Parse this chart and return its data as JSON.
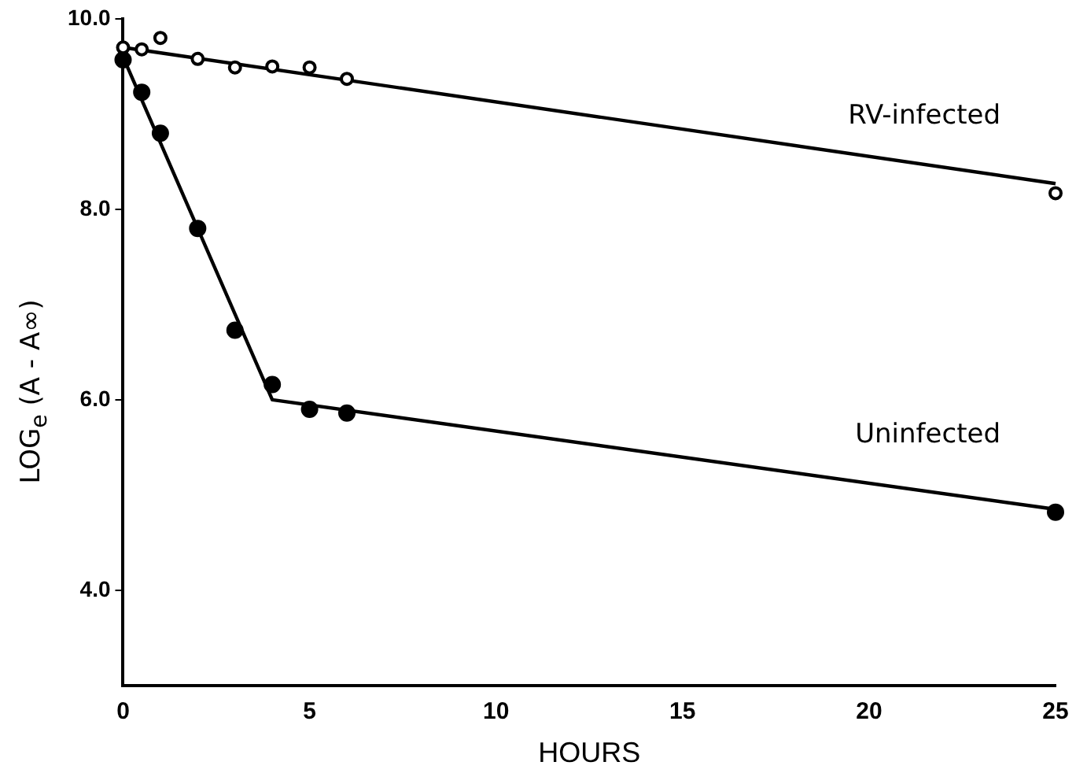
{
  "chart_data": {
    "type": "scatter",
    "xlabel": "HOURS",
    "ylabel": "LOG$_{e}$ (A - A∞)",
    "xlim": [
      0,
      25
    ],
    "xticks": [
      0,
      5,
      10,
      15,
      20,
      25
    ],
    "ylim": [
      3,
      10
    ],
    "yticks": [
      {
        "value": 4,
        "label": "4.0"
      },
      {
        "value": 6,
        "label": "6.0"
      },
      {
        "value": 8,
        "label": "8.0"
      },
      {
        "value": 10,
        "label": "10.0"
      }
    ],
    "grid": false,
    "legend": false,
    "marker": "circle",
    "series": [
      {
        "name": "RV-infected",
        "color": "#000000",
        "x": [
          0,
          0.5,
          1,
          2,
          3,
          4,
          5,
          6,
          25
        ],
        "values": [
          9.7,
          9.68,
          9.8,
          9.58,
          9.49,
          9.5,
          9.49,
          9.37,
          8.17
        ]
      },
      {
        "type": "line",
        "color": "#000000",
        "marker": "none",
        "x": [
          0,
          25
        ],
        "values": [
          9.7,
          8.27
        ]
      },
      {
        "name": "Uninfected",
        "color": "#000000",
        "x": [
          0,
          0.5,
          1,
          2,
          3,
          4,
          5,
          6,
          25
        ],
        "values": [
          9.57,
          9.23,
          8.8,
          7.8,
          6.73,
          6.16,
          5.9,
          5.86,
          4.82
        ]
      },
      {
        "type": "line",
        "color": "#000000",
        "marker": "none",
        "x": [
          0,
          4,
          25
        ],
        "values": [
          9.6,
          6.0,
          4.85
        ]
      }
    ]
  }
}
